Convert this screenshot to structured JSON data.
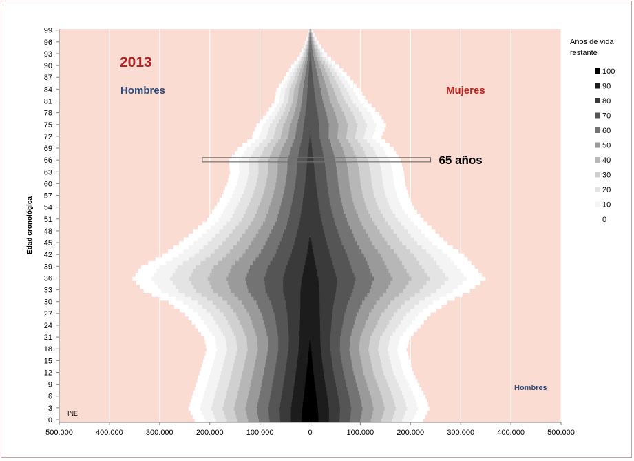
{
  "chart_data": {
    "type": "area",
    "title": "2013",
    "left_label": "Hombres",
    "right_label": "Mujeres",
    "ylabel": "Edad cronológica",
    "xlim": [
      -500000,
      500000
    ],
    "ylim": [
      0,
      100
    ],
    "x_ticks": [
      -500000,
      -400000,
      -300000,
      -200000,
      -100000,
      0,
      100000,
      200000,
      300000,
      400000,
      500000
    ],
    "x_tick_labels": [
      "500.000",
      "400.000",
      "300.000",
      "200.000",
      "100.000",
      "0",
      "100.000",
      "200.000",
      "300.000",
      "400.000",
      "500.000"
    ],
    "y_ticks": [
      0,
      3,
      6,
      9,
      12,
      15,
      18,
      21,
      24,
      27,
      30,
      33,
      36,
      39,
      42,
      45,
      48,
      51,
      54,
      57,
      60,
      63,
      66,
      69,
      72,
      75,
      78,
      81,
      84,
      87,
      90,
      93,
      96,
      99
    ],
    "y_tick_labels": [
      "0",
      "3",
      "6",
      "9",
      "12",
      "15",
      "18",
      "21",
      "24",
      "27",
      "30",
      "33",
      "36",
      "39",
      "42",
      "45",
      "48",
      "51",
      "54",
      "57",
      "60",
      "63",
      "66",
      "69",
      "72",
      "75",
      "78",
      "81",
      "84",
      "87",
      "90",
      "93",
      "96",
      "99"
    ],
    "grid": "vertical",
    "plot_background": "#fbdcd3",
    "legend": {
      "title": "Años de vida restante",
      "position": "right",
      "entries": [
        {
          "label": "100",
          "color": "#000000"
        },
        {
          "label": "90",
          "color": "#1c1c1c"
        },
        {
          "label": "80",
          "color": "#3a3a3a"
        },
        {
          "label": "70",
          "color": "#555555"
        },
        {
          "label": "60",
          "color": "#737373"
        },
        {
          "label": "50",
          "color": "#9a9a9a"
        },
        {
          "label": "40",
          "color": "#b7b7b7"
        },
        {
          "label": "30",
          "color": "#d0d0d0"
        },
        {
          "label": "20",
          "color": "#e4e4e4"
        },
        {
          "label": "10",
          "color": "#f4f4f4"
        },
        {
          "label": "0",
          "color": "#ffffff"
        }
      ]
    },
    "annotation": {
      "text": "65 años",
      "age": 65,
      "x_from": -215000,
      "x_to": 240000
    },
    "bottom_note_right": "Hombres",
    "source": "INE",
    "pyramid": {
      "ages": [
        0,
        3,
        6,
        9,
        12,
        15,
        18,
        21,
        24,
        27,
        30,
        33,
        36,
        39,
        42,
        45,
        48,
        51,
        54,
        57,
        60,
        63,
        66,
        69,
        72,
        75,
        78,
        81,
        84,
        87,
        90,
        93,
        96,
        99
      ],
      "men": [
        230000,
        245000,
        240000,
        235000,
        230000,
        225000,
        220000,
        228000,
        250000,
        275000,
        315000,
        375000,
        405000,
        390000,
        345000,
        310000,
        280000,
        250000,
        235000,
        220000,
        210000,
        205000,
        210000,
        190000,
        155000,
        145000,
        120000,
        100000,
        95000,
        75000,
        55000,
        30000,
        15000,
        4000
      ],
      "women": [
        225000,
        240000,
        235000,
        225000,
        215000,
        210000,
        205000,
        215000,
        240000,
        265000,
        305000,
        360000,
        400000,
        380000,
        360000,
        325000,
        300000,
        275000,
        255000,
        245000,
        240000,
        240000,
        235000,
        220000,
        190000,
        205000,
        190000,
        160000,
        140000,
        115000,
        85000,
        50000,
        25000,
        7000
      ]
    }
  }
}
